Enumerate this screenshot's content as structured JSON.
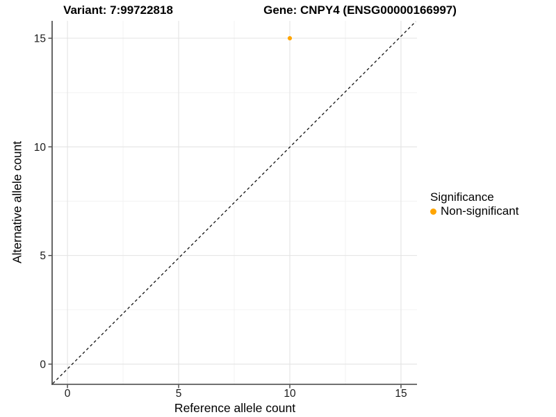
{
  "titles": {
    "left": "Variant: 7:99722818",
    "right": "Gene: CNPY4 (ENSG00000166997)"
  },
  "chart_data": {
    "type": "scatter",
    "title": "Variant: 7:99722818 — Gene: CNPY4 (ENSG00000166997)",
    "xlabel": "Reference allele count",
    "ylabel": "Alternative allele count",
    "x_ticks": [
      0,
      5,
      10,
      15
    ],
    "y_ticks": [
      0,
      5,
      10,
      15
    ],
    "x_minor": [
      2.5,
      7.5,
      12.5
    ],
    "y_minor": [
      2.5,
      7.5,
      12.5
    ],
    "xlim": [
      -0.69,
      15.72
    ],
    "ylim": [
      -0.93,
      15.8
    ],
    "grid": "major+minor",
    "points": [
      {
        "x": 10,
        "y": 15,
        "label": "Non-significant",
        "color": "#FFA500"
      }
    ],
    "identity_line": {
      "equation": "y = x",
      "style": "dashed",
      "color": "#111111"
    },
    "legend": {
      "title": "Significance",
      "position": "right",
      "items": [
        {
          "label": "Non-significant",
          "color": "#FFA500"
        }
      ]
    },
    "colors": {
      "background": "#FFFFFF",
      "grid_major": "#E3E3E3",
      "grid_minor": "#F1F1F1",
      "axis": "#404040",
      "tick_text": "#1A1A1A"
    }
  }
}
